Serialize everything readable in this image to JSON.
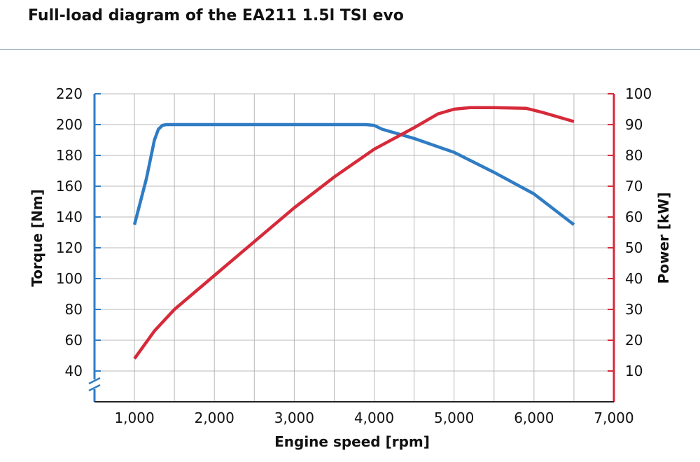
{
  "chart_data": {
    "type": "line",
    "title": "Full-load diagram of the EA211 1.5l TSI evo",
    "xlabel": "Engine speed [rpm]",
    "ylabel_left": "Torque [Nm]",
    "ylabel_right": "Power [kW]",
    "xlim": [
      500,
      7000
    ],
    "x_ticks": [
      1000,
      2000,
      3000,
      4000,
      5000,
      6000,
      7000
    ],
    "x_tick_labels": [
      "1,000",
      "2,000",
      "3,000",
      "4,000",
      "5,000",
      "6,000",
      "7,000"
    ],
    "ylim_left": [
      20,
      220
    ],
    "y_ticks_left": [
      40,
      60,
      80,
      100,
      120,
      140,
      160,
      180,
      200,
      220
    ],
    "ylim_right": [
      0,
      100
    ],
    "y_ticks_right": [
      10,
      20,
      30,
      40,
      50,
      60,
      70,
      80,
      90,
      100
    ],
    "left_axis_break": true,
    "grid": true,
    "series": [
      {
        "axis": "left",
        "color": "#2f7cc4",
        "x": [
          1000,
          1150,
          1250,
          1300,
          1350,
          1400,
          1500,
          2000,
          3000,
          3900,
          4000,
          4100,
          4500,
          5000,
          5500,
          6000,
          6500
        ],
        "y": [
          135,
          165,
          190,
          197,
          199.5,
          200,
          200,
          200,
          200,
          200,
          199.5,
          197,
          191,
          182,
          169,
          155,
          135
        ]
      },
      {
        "axis": "right",
        "color": "#d62a3a",
        "x": [
          1000,
          1250,
          1500,
          2000,
          2500,
          3000,
          3500,
          4000,
          4500,
          4800,
          5000,
          5200,
          5500,
          5900,
          6100,
          6500
        ],
        "y": [
          14,
          23,
          30,
          41,
          52,
          63,
          73,
          82,
          89,
          93.5,
          95,
          95.5,
          95.5,
          95.3,
          94,
          91
        ]
      }
    ]
  }
}
